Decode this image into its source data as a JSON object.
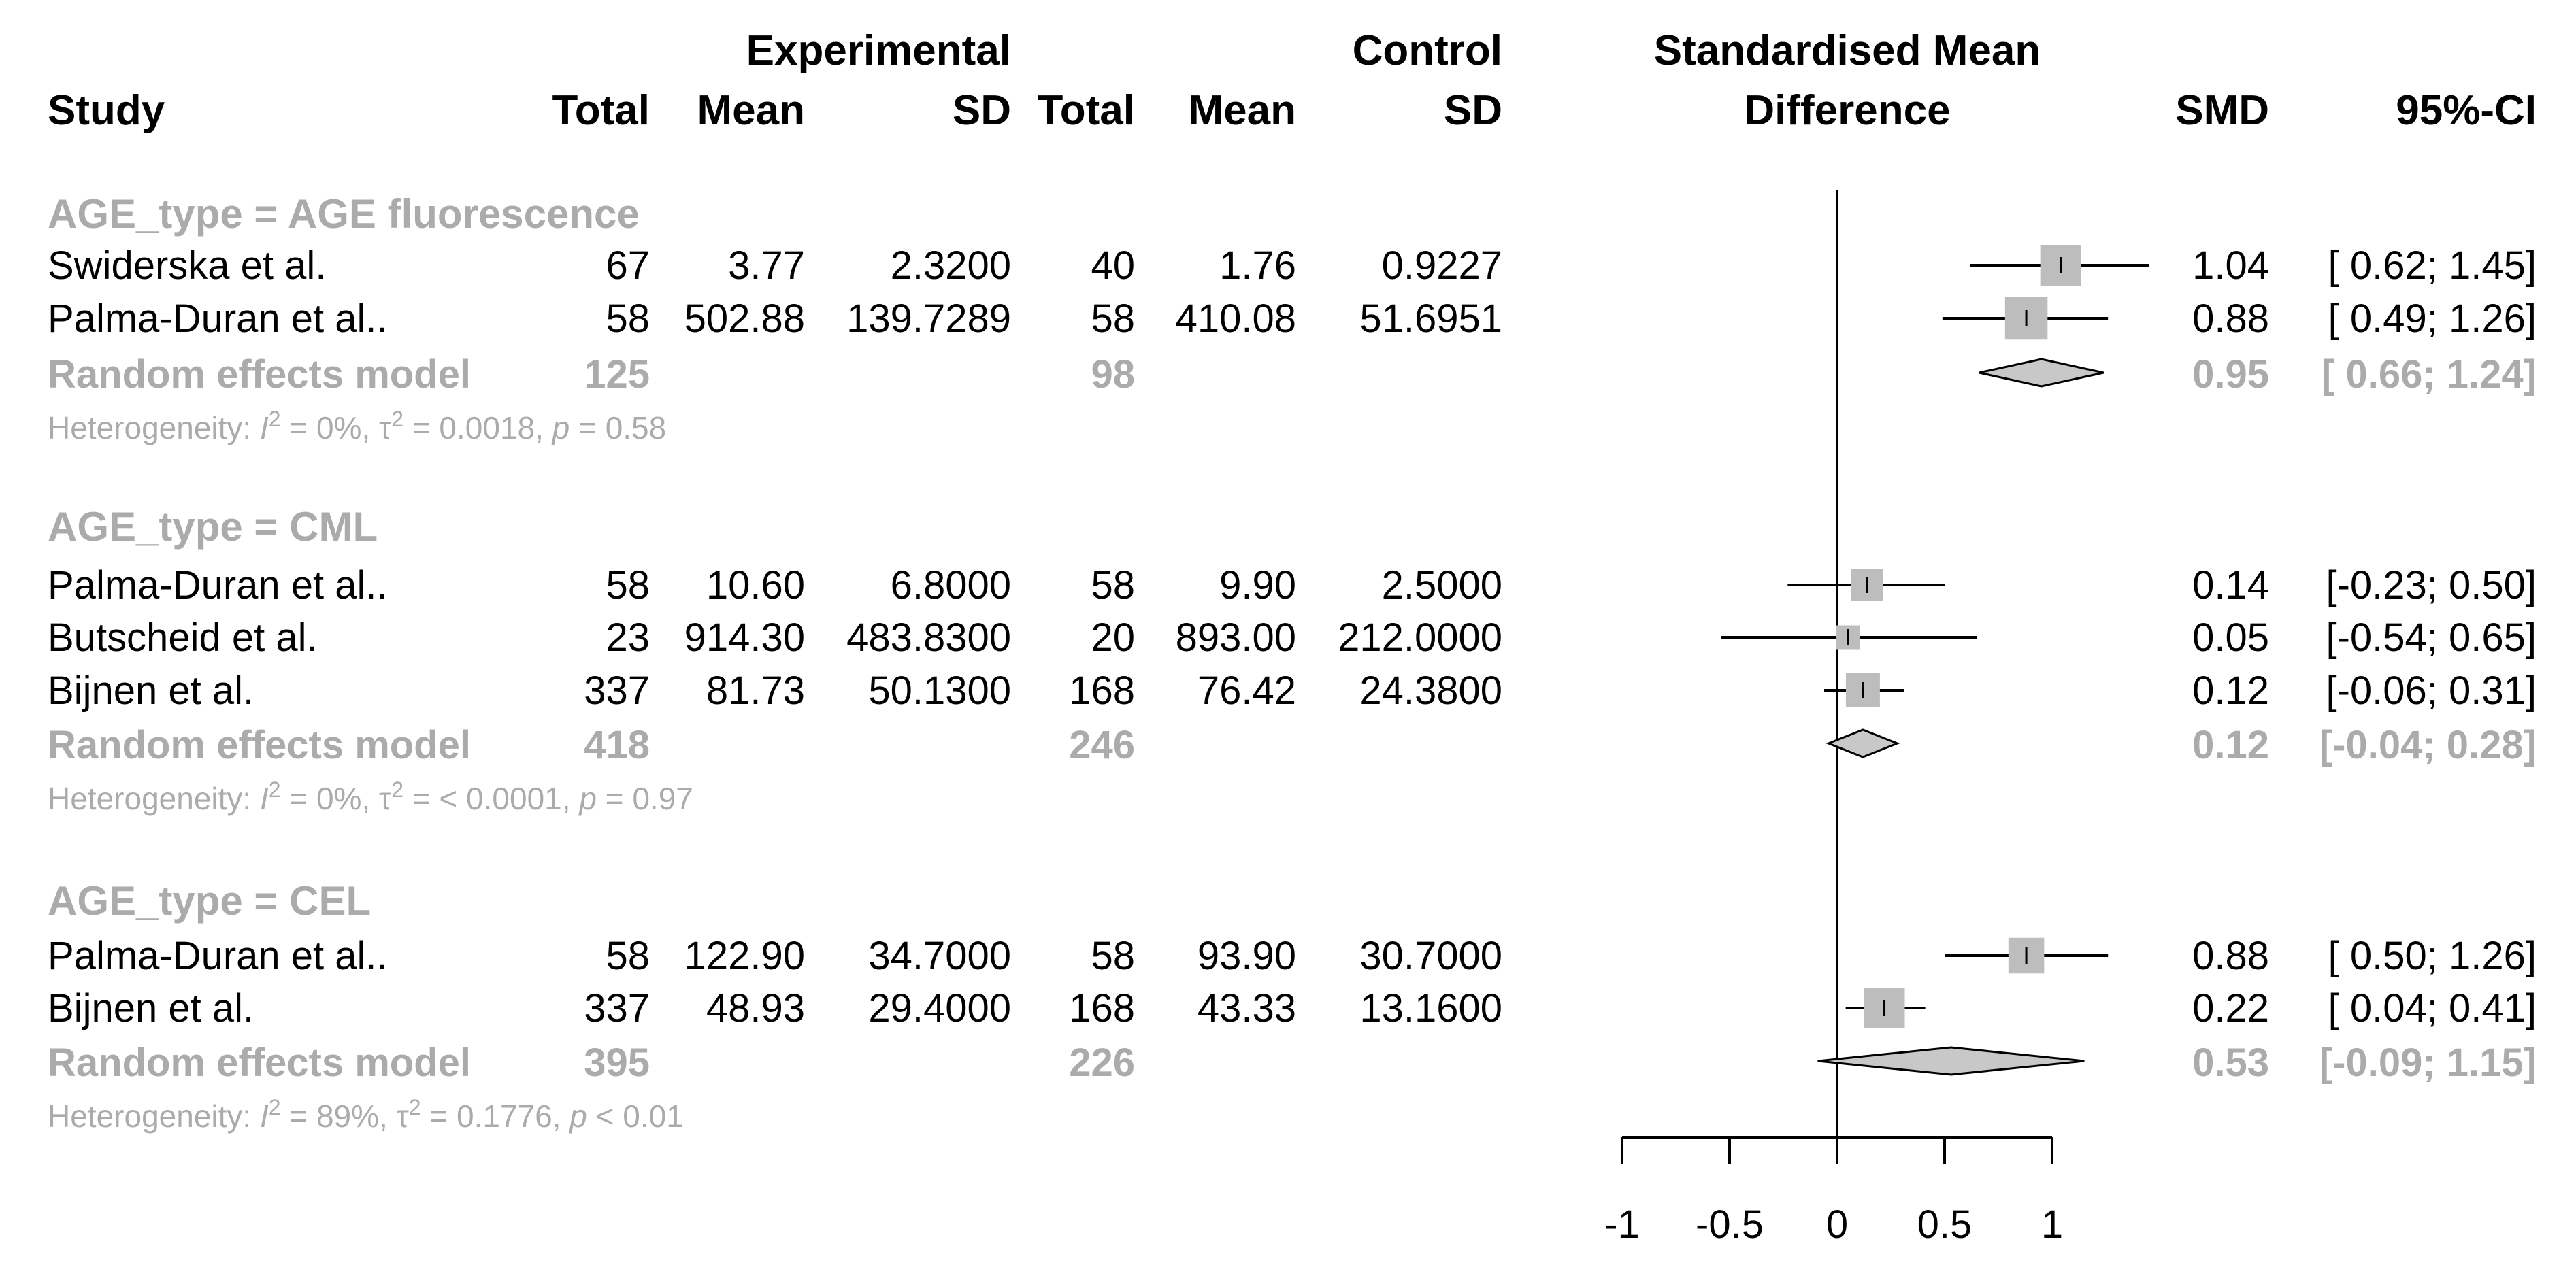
{
  "chart_data": {
    "type": "forest",
    "headers": {
      "study": "Study",
      "experimental": "Experimental",
      "control": "Control",
      "total": "Total",
      "mean": "Mean",
      "sd": "SD",
      "effect_line1": "Standardised Mean",
      "effect_line2": "Difference",
      "smd": "SMD",
      "ci": "95%-CI"
    },
    "x_axis": {
      "min": -1,
      "max": 1,
      "ticks": [
        -1,
        -0.5,
        0,
        0.5,
        1
      ],
      "tick_labels": [
        "-1",
        "-0.5",
        "0",
        "0.5",
        "1"
      ],
      "null_value": 0
    },
    "subgroups": [
      {
        "title": "AGE_type = AGE fluorescence",
        "studies": [
          {
            "study": "Swiderska et al.",
            "exp_total": "67",
            "exp_mean": "3.77",
            "exp_sd": "2.3200",
            "ctl_total": "40",
            "ctl_mean": "1.76",
            "ctl_sd": "0.9227",
            "smd": "1.04",
            "ci_text": "[ 0.62; 1.45]",
            "est": 1.04,
            "lo": 0.62,
            "hi": 1.45,
            "weight": 1.2
          },
          {
            "study": "Palma-Duran et al..",
            "exp_total": "58",
            "exp_mean": "502.88",
            "exp_sd": "139.7289",
            "ctl_total": "58",
            "ctl_mean": "410.08",
            "ctl_sd": "51.6951",
            "smd": "0.88",
            "ci_text": "[ 0.49; 1.26]",
            "est": 0.88,
            "lo": 0.49,
            "hi": 1.26,
            "weight": 1.25
          }
        ],
        "summary": {
          "label": "Random effects model",
          "exp_total": "125",
          "ctl_total": "98",
          "smd": "0.95",
          "ci_text": "[ 0.66; 1.24]",
          "est": 0.95,
          "lo": 0.66,
          "hi": 1.24
        },
        "heterogeneity": {
          "prefix": "Heterogeneity: ",
          "i_symbol": "I",
          "sq": "2",
          "i2_text": " = 0%, ",
          "tau_symbol": "τ",
          "tau2_text": " = 0.0018, ",
          "p_symbol": "p",
          "p_text": " = 0.58"
        }
      },
      {
        "title": "AGE_type = CML",
        "studies": [
          {
            "study": "Palma-Duran et al..",
            "exp_total": "58",
            "exp_mean": "10.60",
            "exp_sd": "6.8000",
            "ctl_total": "58",
            "ctl_mean": "9.90",
            "ctl_sd": "2.5000",
            "smd": "0.14",
            "ci_text": "[-0.23; 0.50]",
            "est": 0.14,
            "lo": -0.23,
            "hi": 0.5,
            "weight": 0.95
          },
          {
            "study": "Butscheid et al.",
            "exp_total": "23",
            "exp_mean": "914.30",
            "exp_sd": "483.8300",
            "ctl_total": "20",
            "ctl_mean": "893.00",
            "ctl_sd": "212.0000",
            "smd": "0.05",
            "ci_text": "[-0.54; 0.65]",
            "est": 0.05,
            "lo": -0.54,
            "hi": 0.65,
            "weight": 0.7
          },
          {
            "study": "Bijnen et al.",
            "exp_total": "337",
            "exp_mean": "81.73",
            "exp_sd": "50.1300",
            "ctl_total": "168",
            "ctl_mean": "76.42",
            "ctl_sd": "24.3800",
            "smd": "0.12",
            "ci_text": "[-0.06; 0.31]",
            "est": 0.12,
            "lo": -0.06,
            "hi": 0.31,
            "weight": 1.0
          }
        ],
        "summary": {
          "label": "Random effects model",
          "exp_total": "418",
          "ctl_total": "246",
          "smd": "0.12",
          "ci_text": "[-0.04; 0.28]",
          "est": 0.12,
          "lo": -0.04,
          "hi": 0.28
        },
        "heterogeneity": {
          "prefix": "Heterogeneity: ",
          "i_symbol": "I",
          "sq": "2",
          "i2_text": " = 0%, ",
          "tau_symbol": "τ",
          "tau2_text": " = < 0.0001, ",
          "p_symbol": "p",
          "p_text": " = 0.97"
        }
      },
      {
        "title": "AGE_type = CEL",
        "studies": [
          {
            "study": "Palma-Duran et al..",
            "exp_total": "58",
            "exp_mean": "122.90",
            "exp_sd": "34.7000",
            "ctl_total": "58",
            "ctl_mean": "93.90",
            "ctl_sd": "30.7000",
            "smd": "0.88",
            "ci_text": "[ 0.50; 1.26]",
            "est": 0.88,
            "lo": 0.5,
            "hi": 1.26,
            "weight": 1.05
          },
          {
            "study": "Bijnen et al.",
            "exp_total": "337",
            "exp_mean": "48.93",
            "exp_sd": "29.4000",
            "ctl_total": "168",
            "ctl_mean": "43.33",
            "ctl_sd": "13.1600",
            "smd": "0.22",
            "ci_text": "[ 0.04; 0.41]",
            "est": 0.22,
            "lo": 0.04,
            "hi": 0.41,
            "weight": 1.2
          }
        ],
        "summary": {
          "label": "Random effects model",
          "exp_total": "395",
          "ctl_total": "226",
          "smd": "0.53",
          "ci_text": "[-0.09; 1.15]",
          "est": 0.53,
          "lo": -0.09,
          "hi": 1.15
        },
        "heterogeneity": {
          "prefix": "Heterogeneity: ",
          "i_symbol": "I",
          "sq": "2",
          "i2_text": " = 89%, ",
          "tau_symbol": "τ",
          "tau2_text": " = 0.1776, ",
          "p_symbol": "p",
          "p_text": " < 0.01"
        }
      }
    ],
    "colors": {
      "square": "#bdbdbd",
      "diamond": "#c8c8c8",
      "muted_text": "#ababab",
      "line": "#000000"
    }
  }
}
